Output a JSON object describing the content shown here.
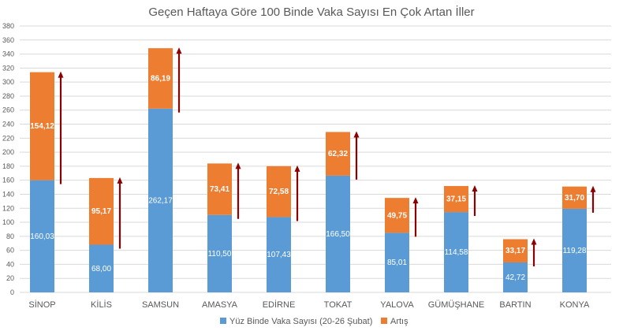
{
  "chart_data": {
    "type": "bar",
    "stacked": true,
    "title": "Geçen Haftaya Göre 100 Binde Vaka Sayısı En Çok Artan İller",
    "categories": [
      "SİNOP",
      "KİLİS",
      "SAMSUN",
      "AMASYA",
      "EDİRNE",
      "TOKAT",
      "YALOVA",
      "GÜMÜŞHANE",
      "BARTIN",
      "KONYA"
    ],
    "series": [
      {
        "name": "Yüz Binde Vaka Sayısı (20-26 Şubat)",
        "color": "#5b9bd5",
        "values": [
          160.03,
          68.0,
          262.17,
          110.5,
          107.43,
          166.5,
          85.01,
          114.58,
          42.72,
          119.28
        ],
        "labels": [
          "160,03",
          "68,00",
          "262,17",
          "110,50",
          "107,43",
          "166,50",
          "85,01",
          "114,58",
          "42,72",
          "119,28"
        ]
      },
      {
        "name": "Artış",
        "color": "#ed7d31",
        "values": [
          154.12,
          95.17,
          86.19,
          73.41,
          72.58,
          62.32,
          49.75,
          37.15,
          33.17,
          31.7
        ],
        "labels": [
          "154,12",
          "95,17",
          "86,19",
          "73,41",
          "72,58",
          "62,32",
          "49,75",
          "37,15",
          "33,17",
          "31,70"
        ]
      }
    ],
    "ylim": [
      0,
      380
    ],
    "yticks": [
      0,
      20,
      40,
      60,
      80,
      100,
      120,
      140,
      160,
      180,
      200,
      220,
      240,
      260,
      280,
      300,
      320,
      340,
      360,
      380
    ],
    "grid": true,
    "legend": "bottom",
    "arrow_color": "#8b0000"
  }
}
